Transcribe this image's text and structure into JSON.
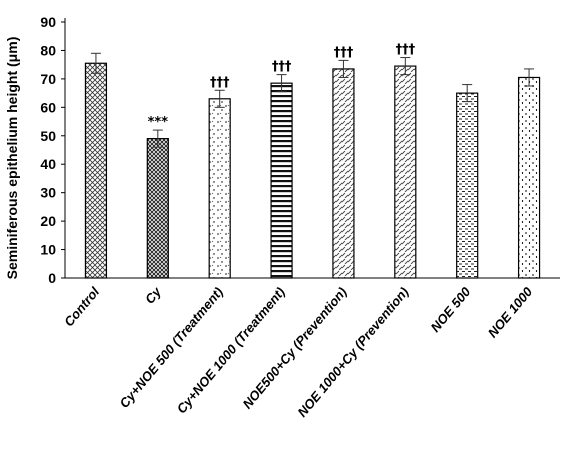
{
  "chart_data": {
    "type": "bar",
    "ylabel": "Seminiferous epithelium height (μm)",
    "xlabel": "",
    "title": "",
    "ylim": [
      0,
      90
    ],
    "yticks": [
      0,
      10,
      20,
      30,
      40,
      50,
      60,
      70,
      80,
      90
    ],
    "grid": false,
    "categories": [
      "Control",
      "Cy",
      "Cy+NOE 500 (Treatment)",
      "Cy+NOE 1000 (Treatment)",
      "NOE500+Cy (Prevention)",
      "NOE 1000+Cy (Prevention)",
      "NOE 500",
      "NOE 1000"
    ],
    "values": [
      75.5,
      49,
      63,
      68.5,
      73.5,
      74.5,
      65,
      70.5
    ],
    "errors": [
      3.5,
      3,
      3,
      3,
      3,
      3,
      3,
      3
    ],
    "patterns": [
      "crosshatch-fine",
      "crosshatch-dense",
      "dots-sparse",
      "horizontal-lines",
      "diagonal-dashes",
      "diagonal-dashes",
      "dashes-dense",
      "dashes-sparse"
    ],
    "annotations": [
      "",
      "***",
      "†††",
      "†††",
      "†††",
      "†††",
      "",
      ""
    ]
  }
}
